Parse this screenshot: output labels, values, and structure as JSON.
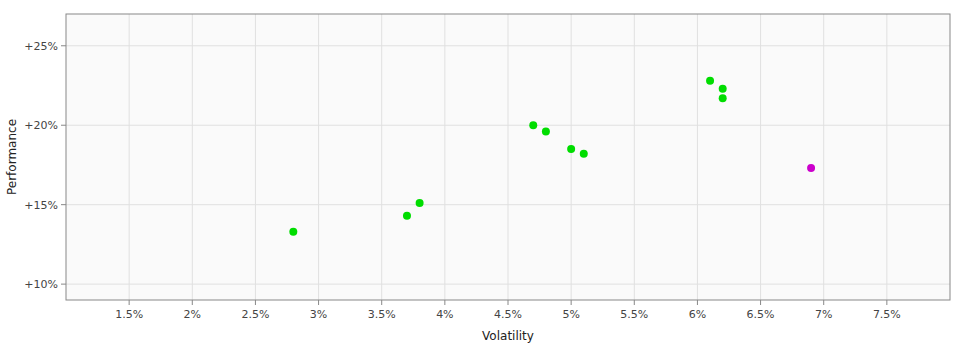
{
  "chart_data": {
    "type": "scatter",
    "xlabel": "Volatility",
    "ylabel": "Performance",
    "xlim": [
      0.01,
      0.08
    ],
    "ylim": [
      0.09,
      0.27
    ],
    "xticks": [
      {
        "value": 0.015,
        "label": "1.5%"
      },
      {
        "value": 0.02,
        "label": "2%"
      },
      {
        "value": 0.025,
        "label": "2.5%"
      },
      {
        "value": 0.03,
        "label": "3%"
      },
      {
        "value": 0.035,
        "label": "3.5%"
      },
      {
        "value": 0.04,
        "label": "4%"
      },
      {
        "value": 0.045,
        "label": "4.5%"
      },
      {
        "value": 0.05,
        "label": "5%"
      },
      {
        "value": 0.055,
        "label": "5.5%"
      },
      {
        "value": 0.06,
        "label": "6%"
      },
      {
        "value": 0.065,
        "label": "6.5%"
      },
      {
        "value": 0.07,
        "label": "7%"
      },
      {
        "value": 0.075,
        "label": "7.5%"
      }
    ],
    "yticks": [
      {
        "value": 0.1,
        "label": "+10%"
      },
      {
        "value": 0.15,
        "label": "+15%"
      },
      {
        "value": 0.2,
        "label": "+20%"
      },
      {
        "value": 0.25,
        "label": "+25%"
      }
    ],
    "grid": true,
    "series": [
      {
        "color": "#00dd00",
        "x": [
          0.028,
          0.037,
          0.038,
          0.047,
          0.048,
          0.05,
          0.051,
          0.061,
          0.062,
          0.062
        ],
        "values": [
          0.133,
          0.143,
          0.151,
          0.2,
          0.196,
          0.185,
          0.182,
          0.228,
          0.223,
          0.217
        ]
      },
      {
        "color": "#cc00cc",
        "x": [
          0.069
        ],
        "values": [
          0.173
        ]
      }
    ]
  }
}
